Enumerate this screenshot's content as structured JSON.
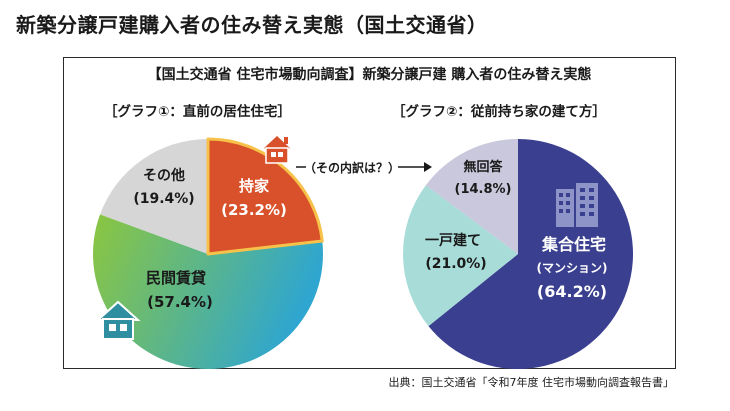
{
  "page_title": "新築分譲戸建購入者の住み替え実態（国土交通省）",
  "panel_title": "【国土交通省 住宅市場動向調査】新築分譲戸建 購入者の住み替え実態",
  "connector_text": "（その内訳は？）",
  "source": "出典：国土交通省「令和7年度 住宅市場動向調査報告書」",
  "icons": {
    "house": "house-icon",
    "building": "building-icon"
  },
  "colors": {
    "owned": "#d9512a",
    "owned_border": "#f6c24a",
    "rental_from": "#8cc63f",
    "rental_to": "#2fa6cf",
    "other": "#d6d6d6",
    "condo": "#3a3f8f",
    "detached": "#a8dcd9",
    "no_answer": "#c9c8dc"
  },
  "chart_data": [
    {
      "type": "pie",
      "title": "［グラフ①：直前の居住住宅］",
      "slices": [
        {
          "label": "持家",
          "value": 23.2,
          "value_text": "(23.2%)"
        },
        {
          "label": "民間賃貸",
          "value": 57.4,
          "value_text": "(57.4%)"
        },
        {
          "label": "その他",
          "value": 19.4,
          "value_text": "(19.4%)"
        }
      ]
    },
    {
      "type": "pie",
      "title": "［グラフ②：従前持ち家の建て方］",
      "slices": [
        {
          "label": "集合住宅",
          "sublabel": "(マンション)",
          "value": 64.2,
          "value_text": "(64.2%)"
        },
        {
          "label": "一戸建て",
          "value": 21.0,
          "value_text": "(21.0%)"
        },
        {
          "label": "無回答",
          "value": 14.8,
          "value_text": "(14.8%)"
        }
      ]
    }
  ]
}
